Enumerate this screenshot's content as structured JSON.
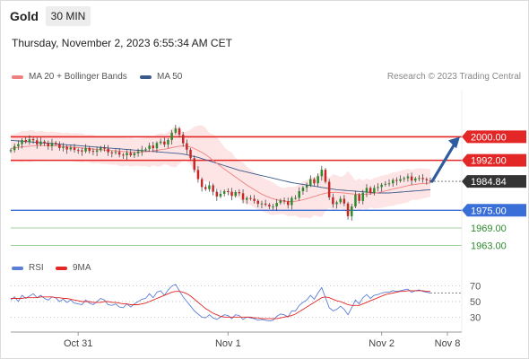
{
  "header": {
    "symbol": "Gold",
    "timeframe": "30 MIN",
    "datetime": "Thursday, November 2, 2023 6:55:34 AM CET"
  },
  "legend": {
    "ma20_label": "MA 20 + Bollinger Bands",
    "ma50_label": "MA 50",
    "credit": "Research © 2023 Trading Central"
  },
  "rsi_legend": {
    "rsi_label": "RSI",
    "ma9_label": "9MA"
  },
  "colors": {
    "ma20": "#f08080",
    "ma50": "#3a5a8c",
    "band_fill": "#fde0e0",
    "resistance": "#e32626",
    "support_strong": "#3a6fd8",
    "support_weak": "#2e8b2e",
    "bull": "#2e8b2e",
    "bear": "#c62828",
    "arrow": "#2f5c9e",
    "rsi": "#5b7fd6",
    "rsi_ma": "#e32626"
  },
  "chart_data": [
    {
      "type": "candlestick",
      "title": "",
      "y_range": [
        1958,
        2016
      ],
      "levels": [
        {
          "value": 2000.0,
          "label": "2000.00",
          "role": "resistance"
        },
        {
          "value": 1992.0,
          "label": "1992.00",
          "role": "resistance"
        },
        {
          "value": 1984.84,
          "label": "1984.84",
          "role": "current"
        },
        {
          "value": 1975.0,
          "label": "1975.00",
          "role": "support"
        },
        {
          "value": 1969.0,
          "label": "1969.00",
          "role": "support-minor"
        },
        {
          "value": 1963.0,
          "label": "1963.00",
          "role": "support-minor"
        }
      ],
      "x_labels": [
        "Oct 31",
        "Nov 1",
        "Nov 2",
        "Nov 8"
      ],
      "forecast_arrow": {
        "from": 1984.84,
        "to": 2000.0
      },
      "closes": [
        1995.5,
        1996.8,
        1997.5,
        1998.9,
        1998.2,
        1999.2,
        1998.8,
        1997.4,
        1998.4,
        1997.8,
        1996.8,
        1998.0,
        1997.5,
        1996.2,
        1996.6,
        1995.7,
        1996.3,
        1995.5,
        1995.4,
        1995.0,
        1996.2,
        1995.2,
        1994.9,
        1995.4,
        1996.3,
        1995.9,
        1994.7,
        1994.5,
        1994.8,
        1993.9,
        1993.7,
        1994.5,
        1993.7,
        1994.4,
        1995.0,
        1995.6,
        1995.8,
        1997.0,
        1996.1,
        1997.9,
        1998.4,
        1997.4,
        1998.9,
        2001.4,
        2002.8,
        2000.7,
        1997.8,
        1995.6,
        1992.7,
        1988.7,
        1985.6,
        1982.9,
        1982.2,
        1983.5,
        1981.3,
        1979.7,
        1980.6,
        1981.5,
        1981.3,
        1979.9,
        1981.2,
        1980.8,
        1978.6,
        1979.2,
        1978.9,
        1978.2,
        1977.2,
        1977.3,
        1976.9,
        1976.3,
        1976.3,
        1977.5,
        1978.4,
        1978.0,
        1976.8,
        1979.2,
        1979.2,
        1981.5,
        1982.7,
        1983.5,
        1985.6,
        1984.2,
        1986.6,
        1988.8,
        1984.7,
        1979.4,
        1977.1,
        1977.7,
        1978.9,
        1977.3,
        1973.0,
        1976.3,
        1980.3,
        1978.2,
        1981.0,
        1982.6,
        1980.9,
        1982.6,
        1982.9,
        1983.7,
        1984.0,
        1984.2,
        1985.3,
        1985.0,
        1985.6,
        1985.9,
        1986.5,
        1985.1,
        1985.8,
        1986.0,
        1985.6,
        1985.2,
        1984.8
      ],
      "ma20": [
        1996.0,
        1996.2,
        1996.4,
        1996.6,
        1996.7,
        1996.8,
        1996.9,
        1997.0,
        1997.0,
        1997.0,
        1997.0,
        1996.9,
        1996.9,
        1996.8,
        1996.7,
        1996.6,
        1996.5,
        1996.4,
        1996.3,
        1996.2,
        1996.1,
        1996.0,
        1995.8,
        1995.7,
        1995.6,
        1995.5,
        1995.4,
        1995.3,
        1995.2,
        1995.1,
        1995.0,
        1994.9,
        1994.8,
        1994.7,
        1994.7,
        1994.8,
        1994.9,
        1995.0,
        1995.2,
        1995.4,
        1995.6,
        1995.8,
        1996.0,
        1996.3,
        1996.6,
        1996.8,
        1996.9,
        1996.8,
        1996.5,
        1996.0,
        1995.4,
        1994.7,
        1993.9,
        1993.0,
        1992.0,
        1991.0,
        1990.0,
        1989.0,
        1988.1,
        1987.2,
        1986.3,
        1985.4,
        1984.5,
        1983.6,
        1982.8,
        1982.0,
        1981.2,
        1980.5,
        1979.9,
        1979.4,
        1978.9,
        1978.6,
        1978.3,
        1978.1,
        1978.0,
        1978.0,
        1978.1,
        1978.3,
        1978.6,
        1978.9,
        1979.3,
        1979.7,
        1980.1,
        1980.5,
        1980.8,
        1981.0,
        1981.1,
        1981.1,
        1981.0,
        1980.9,
        1980.7,
        1980.6,
        1980.5,
        1980.4,
        1980.4,
        1980.5,
        1980.6,
        1980.8,
        1981.0,
        1981.3,
        1981.6,
        1981.9,
        1982.2,
        1982.5,
        1982.8,
        1983.1,
        1983.4,
        1983.6,
        1983.8,
        1984.0,
        1984.1,
        1984.2,
        1984.3
      ],
      "ma50": [
        1998.8,
        1998.7,
        1998.6,
        1998.5,
        1998.4,
        1998.3,
        1998.2,
        1998.1,
        1998.0,
        1997.9,
        1997.8,
        1997.7,
        1997.6,
        1997.5,
        1997.4,
        1997.3,
        1997.2,
        1997.1,
        1997.0,
        1996.9,
        1996.8,
        1996.7,
        1996.6,
        1996.5,
        1996.4,
        1996.3,
        1996.2,
        1996.1,
        1996.0,
        1995.9,
        1995.8,
        1995.7,
        1995.6,
        1995.5,
        1995.4,
        1995.3,
        1995.2,
        1995.1,
        1995.0,
        1994.9,
        1994.8,
        1994.7,
        1994.6,
        1994.5,
        1994.4,
        1994.3,
        1994.1,
        1993.9,
        1993.6,
        1993.3,
        1993.0,
        1992.6,
        1992.2,
        1991.8,
        1991.4,
        1991.0,
        1990.6,
        1990.2,
        1989.8,
        1989.4,
        1989.0,
        1988.6,
        1988.3,
        1988.0,
        1987.7,
        1987.4,
        1987.1,
        1986.8,
        1986.5,
        1986.2,
        1985.9,
        1985.6,
        1985.3,
        1985.0,
        1984.7,
        1984.4,
        1984.2,
        1984.0,
        1983.8,
        1983.6,
        1983.4,
        1983.2,
        1983.0,
        1982.8,
        1982.6,
        1982.4,
        1982.2,
        1982.0,
        1981.9,
        1981.8,
        1981.7,
        1981.6,
        1981.5,
        1981.4,
        1981.3,
        1981.2,
        1981.1,
        1981.0,
        1980.9,
        1980.9,
        1980.9,
        1980.9,
        1981.0,
        1981.1,
        1981.2,
        1981.3,
        1981.4,
        1981.5,
        1981.6,
        1981.7,
        1981.8,
        1981.9,
        1982.0
      ]
    },
    {
      "type": "line",
      "title": "",
      "y_range": [
        20,
        80
      ],
      "y_ticks": [
        70,
        50,
        30
      ],
      "series": [
        {
          "name": "RSI",
          "values": [
            52,
            56,
            50,
            58,
            54,
            57,
            60,
            55,
            58,
            54,
            52,
            56,
            55,
            50,
            53,
            49,
            52,
            48,
            47,
            46,
            52,
            48,
            46,
            50,
            54,
            52,
            46,
            45,
            47,
            43,
            42,
            47,
            43,
            47,
            50,
            53,
            54,
            60,
            55,
            62,
            64,
            58,
            65,
            70,
            72,
            64,
            56,
            50,
            44,
            38,
            34,
            30,
            29,
            33,
            29,
            27,
            30,
            33,
            32,
            28,
            33,
            32,
            27,
            30,
            29,
            28,
            26,
            27,
            26,
            25,
            26,
            31,
            34,
            33,
            30,
            38,
            38,
            45,
            49,
            52,
            58,
            53,
            61,
            68,
            55,
            42,
            38,
            40,
            44,
            40,
            33,
            42,
            52,
            47,
            55,
            59,
            54,
            58,
            59,
            61,
            62,
            62,
            64,
            63,
            64,
            65,
            66,
            62,
            64,
            65,
            63,
            62,
            61
          ]
        },
        {
          "name": "9MA",
          "values": [
            54,
            54,
            54,
            54,
            55,
            55,
            55,
            55,
            56,
            56,
            56,
            56,
            55,
            55,
            54,
            54,
            53,
            52,
            51,
            50,
            50,
            50,
            49,
            49,
            49,
            50,
            50,
            49,
            49,
            48,
            47,
            47,
            46,
            46,
            46,
            47,
            48,
            50,
            52,
            54,
            56,
            58,
            60,
            62,
            63,
            63,
            62,
            60,
            57,
            53,
            49,
            45,
            41,
            38,
            35,
            33,
            31,
            30,
            30,
            30,
            30,
            30,
            30,
            30,
            30,
            29,
            29,
            28,
            28,
            28,
            28,
            28,
            29,
            30,
            31,
            32,
            34,
            37,
            40,
            43,
            46,
            49,
            52,
            55,
            56,
            55,
            53,
            51,
            50,
            48,
            46,
            45,
            45,
            45,
            47,
            49,
            51,
            53,
            55,
            57,
            59,
            60,
            61,
            62,
            63,
            63,
            64,
            64,
            64,
            64,
            64,
            63,
            63
          ]
        }
      ]
    }
  ]
}
